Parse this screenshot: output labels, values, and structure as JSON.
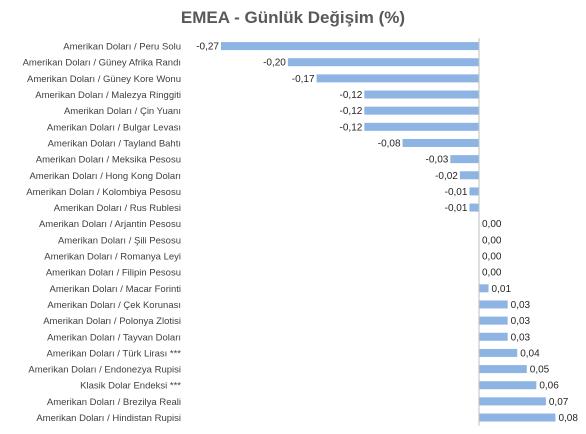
{
  "chart_data": {
    "type": "bar",
    "orientation": "horizontal",
    "title": "EMEA - Günlük Değişim (%)",
    "xlabel": "",
    "ylabel": "",
    "xlim": [
      -0.27,
      0.08
    ],
    "grid": false,
    "legend": "none",
    "bar_color": "#8eb4e3",
    "categories": [
      "Amerikan Doları / Peru Solu",
      "Amerikan Doları / Güney Afrika Randı",
      "Amerikan Doları / Güney Kore Wonu",
      "Amerikan Doları / Malezya Ringgiti",
      "Amerikan Doları / Çin Yuanı",
      "Amerikan Doları / Bulgar Levası",
      "Amerikan Doları / Tayland Bahtı",
      "Amerikan Doları / Meksika Pesosu",
      "Amerikan Doları / Hong Kong Doları",
      "Amerikan Doları / Kolombiya Pesosu",
      "Amerikan Doları / Rus Rublesi",
      "Amerikan Doları / Arjantin Pesosu",
      "Amerikan Doları / Şili Pesosu",
      "Amerikan Doları / Romanya Leyi",
      "Amerikan Doları / Filipin Pesosu",
      "Amerikan Doları / Macar Forinti",
      "Amerikan Doları / Çek Korunası",
      "Amerikan Doları / Polonya Zlotisi",
      "Amerikan Doları / Tayvan Doları",
      "Amerikan Doları / Türk Lirası ***",
      "Amerikan Doları / Endonezya Rupisi",
      "Klasik Dolar Endeksi ***",
      "Amerikan Doları / Brezilya Reali",
      "Amerikan Doları / Hindistan Rupisi"
    ],
    "values": [
      -0.27,
      -0.2,
      -0.17,
      -0.12,
      -0.12,
      -0.12,
      -0.08,
      -0.03,
      -0.02,
      -0.01,
      -0.01,
      0.0,
      0.0,
      0.0,
      0.0,
      0.01,
      0.03,
      0.03,
      0.03,
      0.04,
      0.05,
      0.06,
      0.07,
      0.08
    ],
    "value_labels": [
      "-0,27",
      "-0,20",
      "-0,17",
      "-0,12",
      "-0,12",
      "-0,12",
      "-0,08",
      "-0,03",
      "-0,02",
      "-0,01",
      "-0,01",
      "0,00",
      "0,00",
      "0,00",
      "0,00",
      "0,01",
      "0,03",
      "0,03",
      "0,03",
      "0,04",
      "0,05",
      "0,06",
      "0,07",
      "0,08"
    ]
  }
}
